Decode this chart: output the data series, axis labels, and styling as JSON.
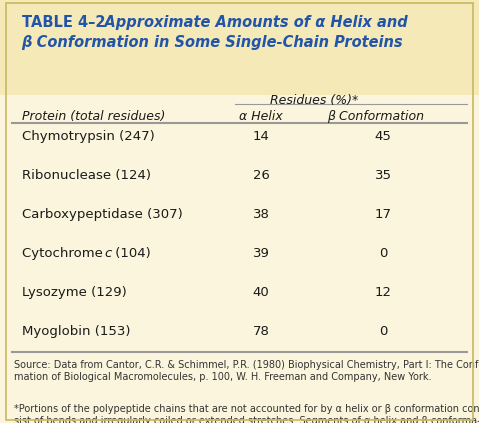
{
  "title_bold": "TABLE 4–2",
  "title_rest_line1": "   Approximate Amounts of α Helix and",
  "title_line2": "β Conformation in Some Single-Chain Proteins",
  "residues_header": "Residues (%)*",
  "col_header_protein": "Protein (total residues)",
  "col_header_alpha": "α Helix",
  "col_header_beta": "β Conformation",
  "rows": [
    [
      "Chymotrypsin (247)",
      "14",
      "45"
    ],
    [
      "Ribonuclease (124)",
      "26",
      "35"
    ],
    [
      "Carboxypeptidase (307)",
      "38",
      "17"
    ],
    [
      "Cytochrome c (104)",
      "39",
      "0"
    ],
    [
      "Lysozyme (129)",
      "40",
      "12"
    ],
    [
      "Myoglobin (153)",
      "78",
      "0"
    ]
  ],
  "source_normal1": "Source: Data from Cantor, C.R. & Schimmel, P.R. (1980) ",
  "source_italic1": "Biophysical Chemistry",
  "source_normal2": ", Part I: ",
  "source_italic2": "The Confor-\nmation of Biological Macromolecules",
  "source_normal3": ", p. 100, W. H. Freeman and Company, New York.",
  "footnote_text": "*Portions of the polypeptide chains that are not accounted for by α helix or β conformation con-\nsist of bends and irregularly coiled or extended stretches. Segments of α helix and β conforma-\ntion sometimes deviate slightly from their normal dimensions and geometry.",
  "bg_color_header": "#f5e9b8",
  "bg_color_table": "#faf5dc",
  "title_color": "#2255aa",
  "text_color": "#1a1a1a",
  "source_color": "#333333",
  "line_color": "#999999",
  "border_color": "#c8b860"
}
